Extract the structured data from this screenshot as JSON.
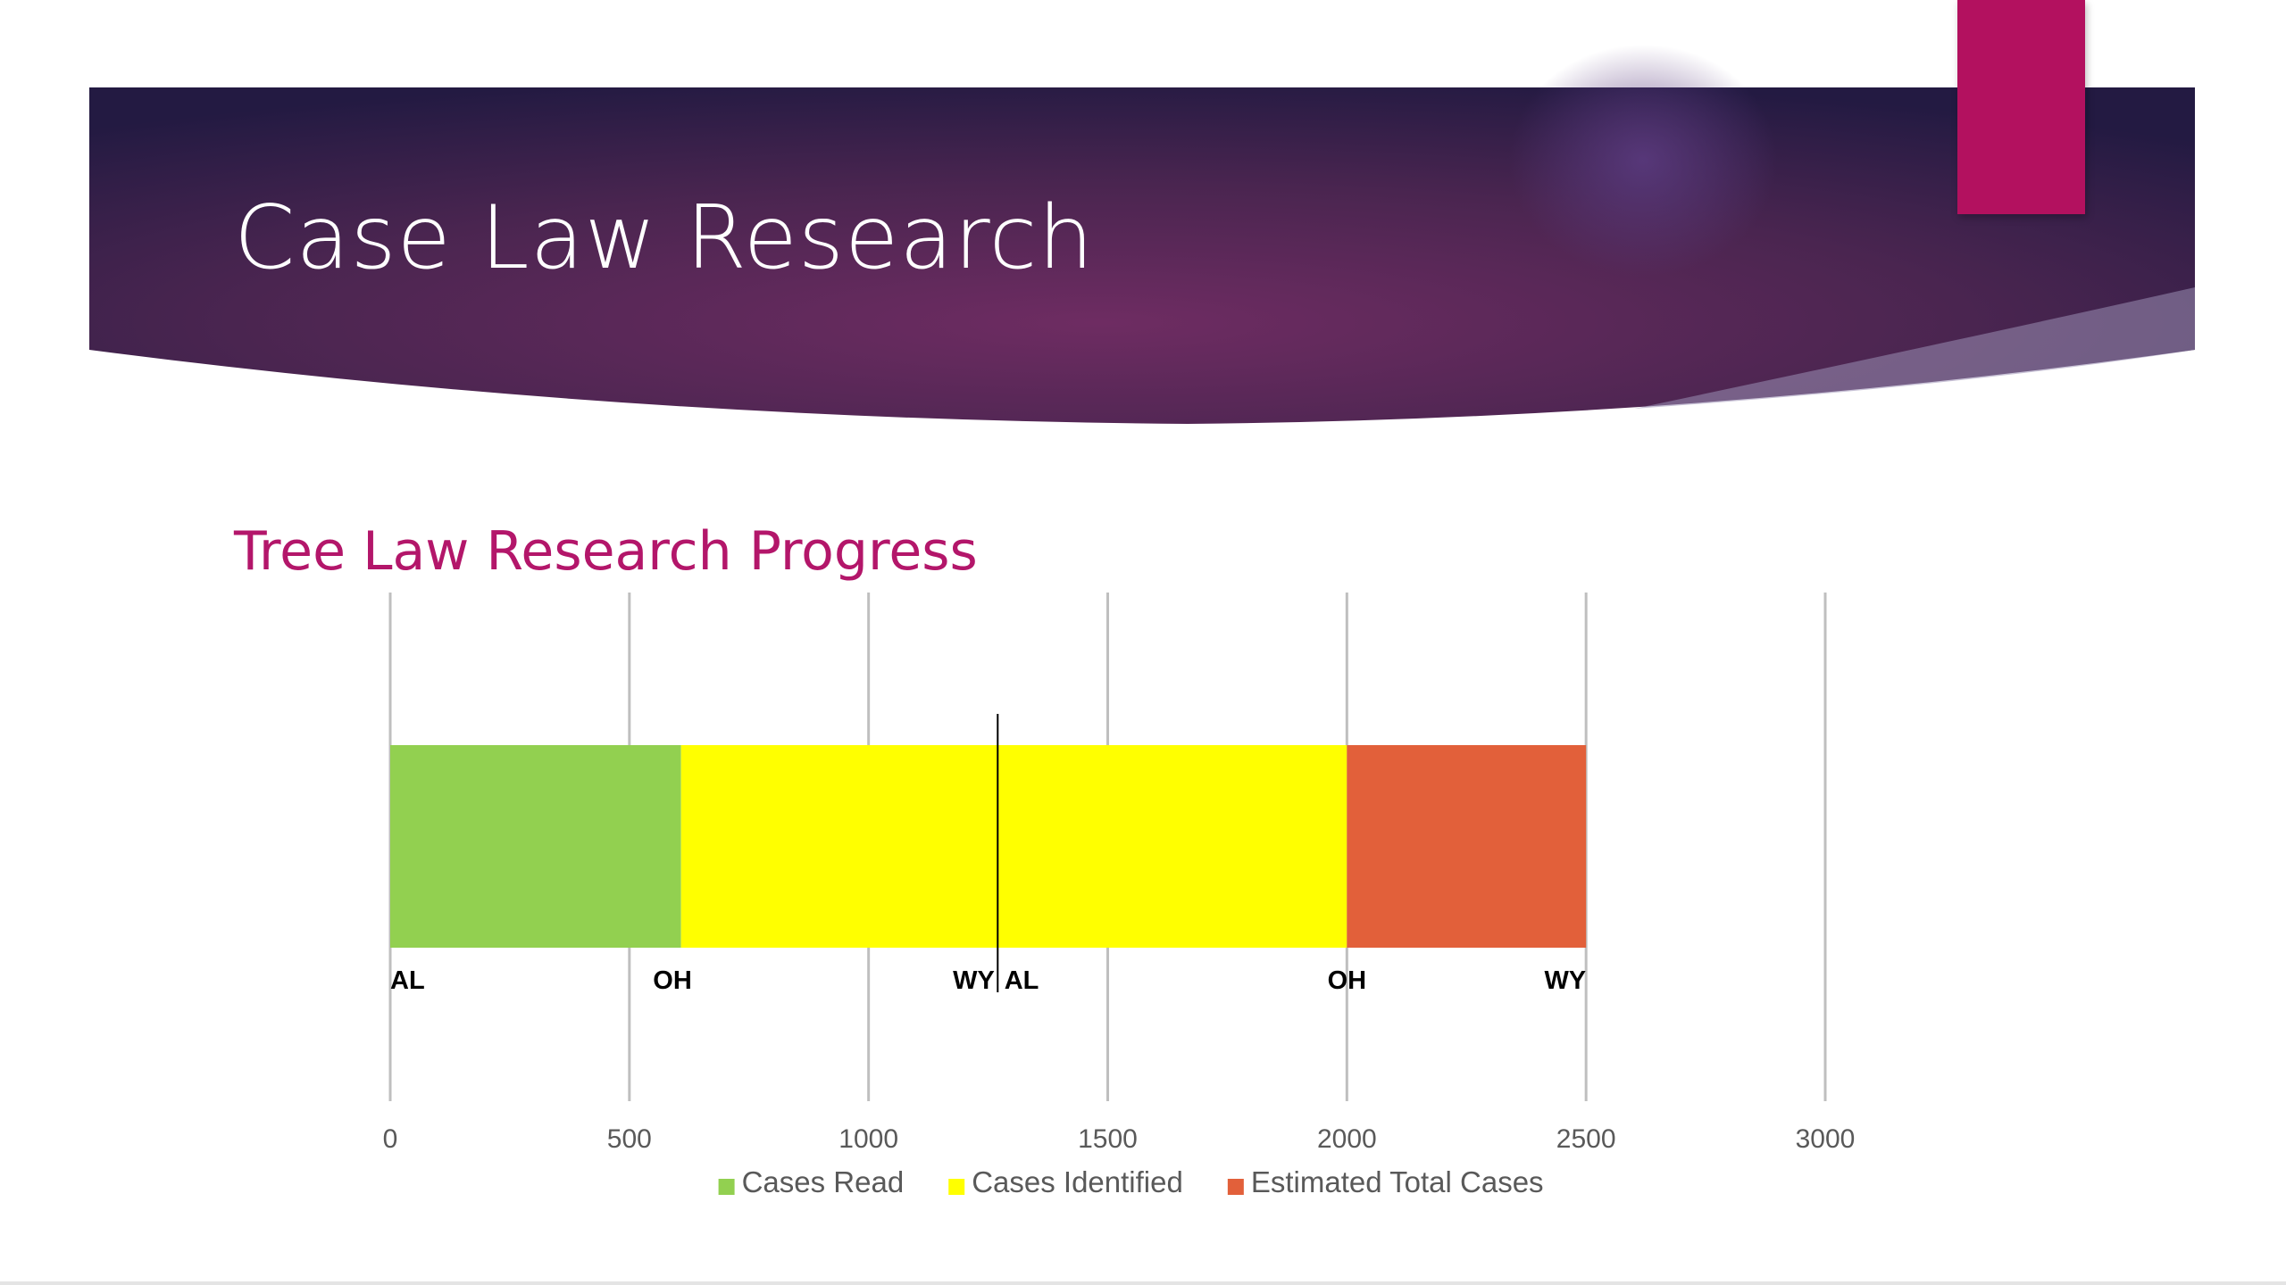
{
  "slide": {
    "title": "Case Law Research",
    "colors": {
      "banner_dark": "#2a1b47",
      "banner_mid": "#6b2a60",
      "accent": "#b3115f",
      "subtitle": "#b3166a"
    }
  },
  "chart_data": {
    "type": "bar",
    "orientation": "horizontal",
    "stacked": true,
    "title": "Tree Law Research Progress",
    "xlabel": "",
    "ylabel": "",
    "xlim": [
      0,
      3000
    ],
    "x_ticks": [
      0,
      500,
      1000,
      1500,
      2000,
      2500,
      3000
    ],
    "tick_labels": [
      "0",
      "500",
      "1000",
      "1500",
      "2000",
      "2500",
      "3000"
    ],
    "grid": "vertical",
    "legend": "bottom",
    "categories": [
      ""
    ],
    "series": [
      {
        "name": "Cases Read",
        "color": "#92d050",
        "values": [
          608
        ]
      },
      {
        "name": "Cases Identified",
        "color": "#ffff00",
        "values": [
          1392
        ]
      },
      {
        "name": "Estimated Total Cases",
        "color": "#e2603a",
        "values": [
          500
        ]
      }
    ],
    "marker_line": {
      "x": 1270
    },
    "data_labels": [
      {
        "text": "AL",
        "x": 0,
        "anchor": "start"
      },
      {
        "text": "OH",
        "x": 590,
        "anchor": "middle"
      },
      {
        "text": "WY",
        "x": 1220,
        "anchor": "middle"
      },
      {
        "text": "AL",
        "x": 1320,
        "anchor": "middle"
      },
      {
        "text": "OH",
        "x": 2000,
        "anchor": "middle"
      },
      {
        "text": "WY",
        "x": 2500,
        "anchor": "end"
      }
    ]
  }
}
